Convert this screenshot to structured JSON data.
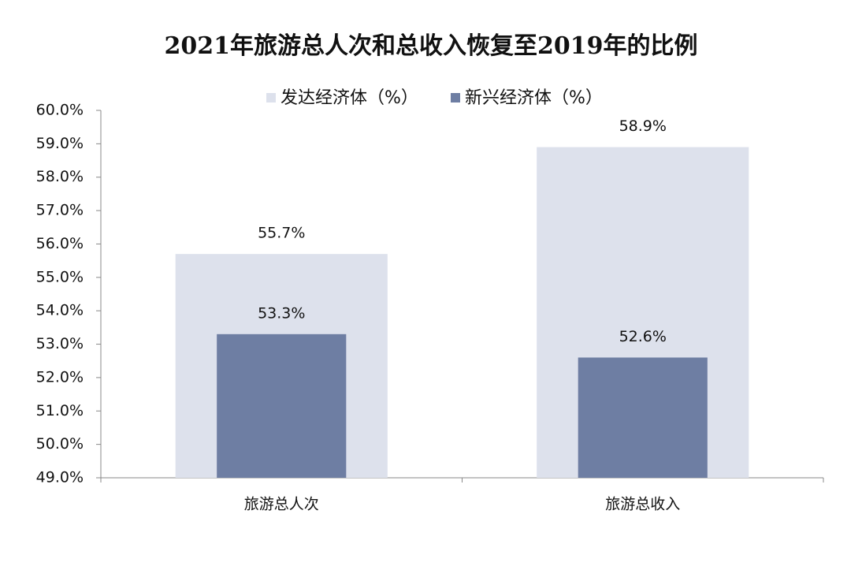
{
  "chart_data": {
    "type": "bar",
    "title": "2021年旅游总人次和总收入恢复至2019年的比例",
    "categories": [
      "旅游总人次",
      "旅游总收入"
    ],
    "series": [
      {
        "name": "发达经济体（%）",
        "color": "#dde1ec",
        "values": [
          55.7,
          58.9
        ],
        "value_labels": [
          "55.7%",
          "58.9%"
        ]
      },
      {
        "name": "新兴经济体（%）",
        "color": "#6e7ea3",
        "values": [
          53.3,
          52.6
        ],
        "value_labels": [
          "53.3%",
          "52.6%"
        ]
      }
    ],
    "ylim": [
      49,
      60
    ],
    "yticks": [
      {
        "value": 49,
        "label": "49.0%"
      },
      {
        "value": 50,
        "label": "50.0%"
      },
      {
        "value": 51,
        "label": "51.0%"
      },
      {
        "value": 52,
        "label": "52.0%"
      },
      {
        "value": 53,
        "label": "53.0%"
      },
      {
        "value": 54,
        "label": "54.0%"
      },
      {
        "value": 55,
        "label": "55.0%"
      },
      {
        "value": 56,
        "label": "56.0%"
      },
      {
        "value": 57,
        "label": "57.0%"
      },
      {
        "value": 58,
        "label": "58.0%"
      },
      {
        "value": 59,
        "label": "59.0%"
      },
      {
        "value": 60,
        "label": "60.0%"
      }
    ],
    "grid": false,
    "legend": "top"
  }
}
